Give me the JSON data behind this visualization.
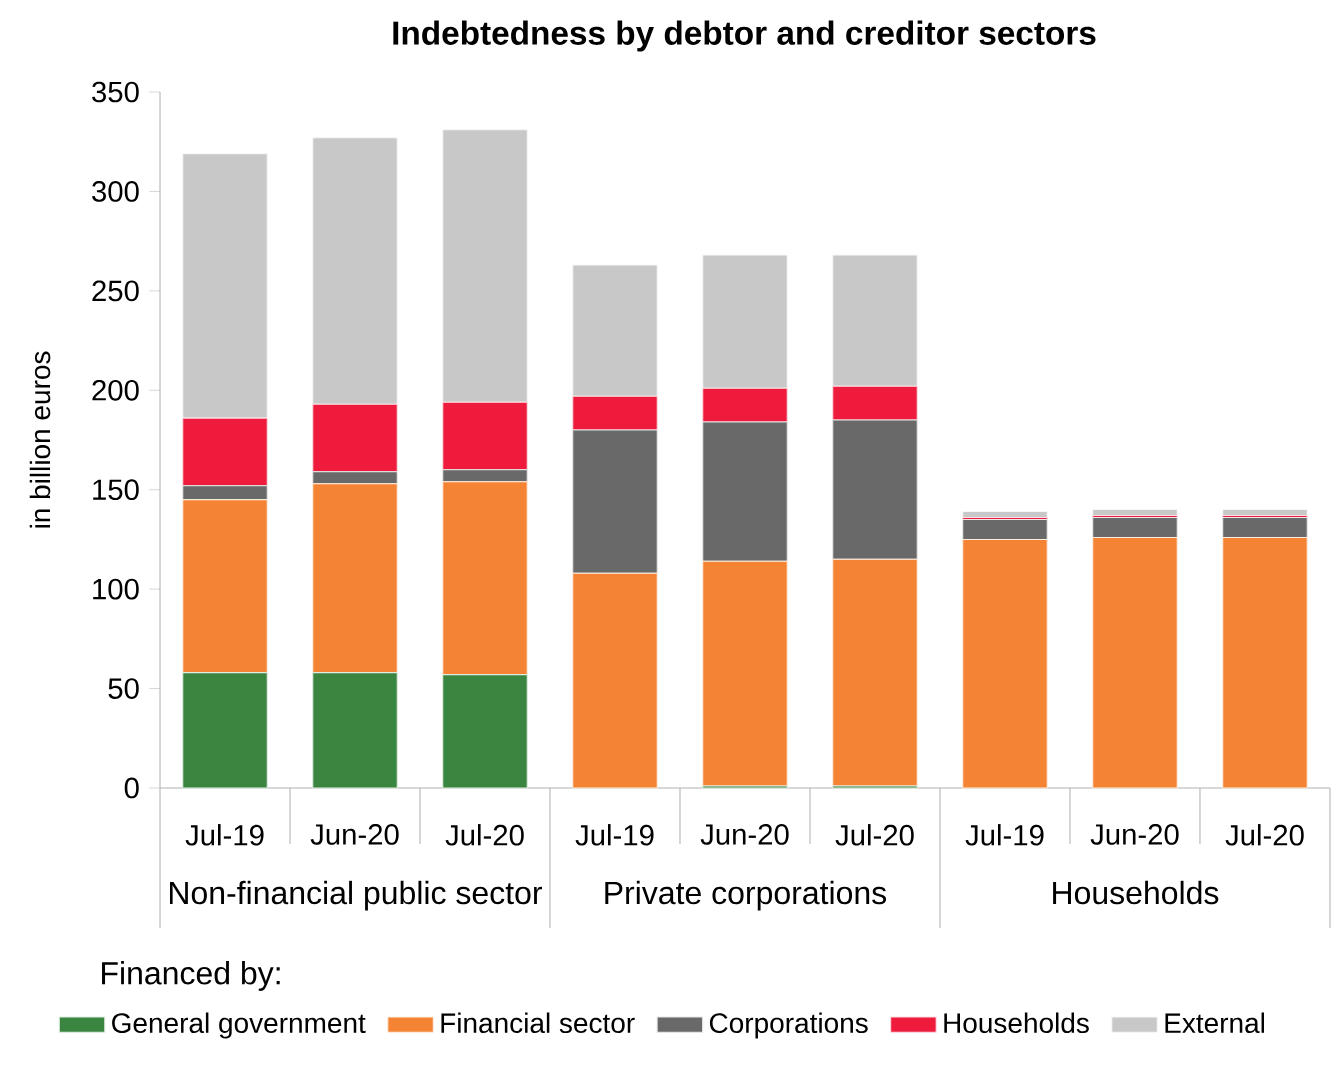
{
  "chart_data": {
    "type": "bar",
    "title": "Indebtedness by debtor and creditor sectors",
    "ylabel": "in billion euros",
    "legend_title": "Financed by:",
    "categories": [
      "Jul-19",
      "Jun-20",
      "Jul-20",
      "Jul-19",
      "Jun-20",
      "Jul-20",
      "Jul-19",
      "Jun-20",
      "Jul-20"
    ],
    "annotations": [
      "Non-financial public sector",
      "Private corporations",
      "Households"
    ],
    "stacked": true,
    "ylim": [
      0,
      350
    ],
    "yticks": [
      0,
      50,
      100,
      150,
      200,
      250,
      300,
      350
    ],
    "grid": false,
    "legend": "bottom",
    "series": [
      {
        "name": "General government",
        "color": "#3a8540",
        "values": [
          58,
          58,
          57,
          0,
          1,
          1,
          0,
          0,
          0
        ]
      },
      {
        "name": "Financial sector",
        "color": "#f48434",
        "values": [
          87,
          95,
          97,
          108,
          113,
          114,
          125,
          126,
          126
        ]
      },
      {
        "name": "Corporations",
        "color": "#696969",
        "values": [
          7,
          6,
          6,
          72,
          70,
          70,
          10,
          10,
          10
        ]
      },
      {
        "name": "Households",
        "color": "#ee1b3c",
        "values": [
          34,
          34,
          34,
          17,
          17,
          17,
          1,
          1,
          1
        ]
      },
      {
        "name": "External",
        "color": "#c8c8c8",
        "values": [
          133,
          134,
          137,
          66,
          67,
          66,
          3,
          3,
          3
        ]
      }
    ]
  }
}
